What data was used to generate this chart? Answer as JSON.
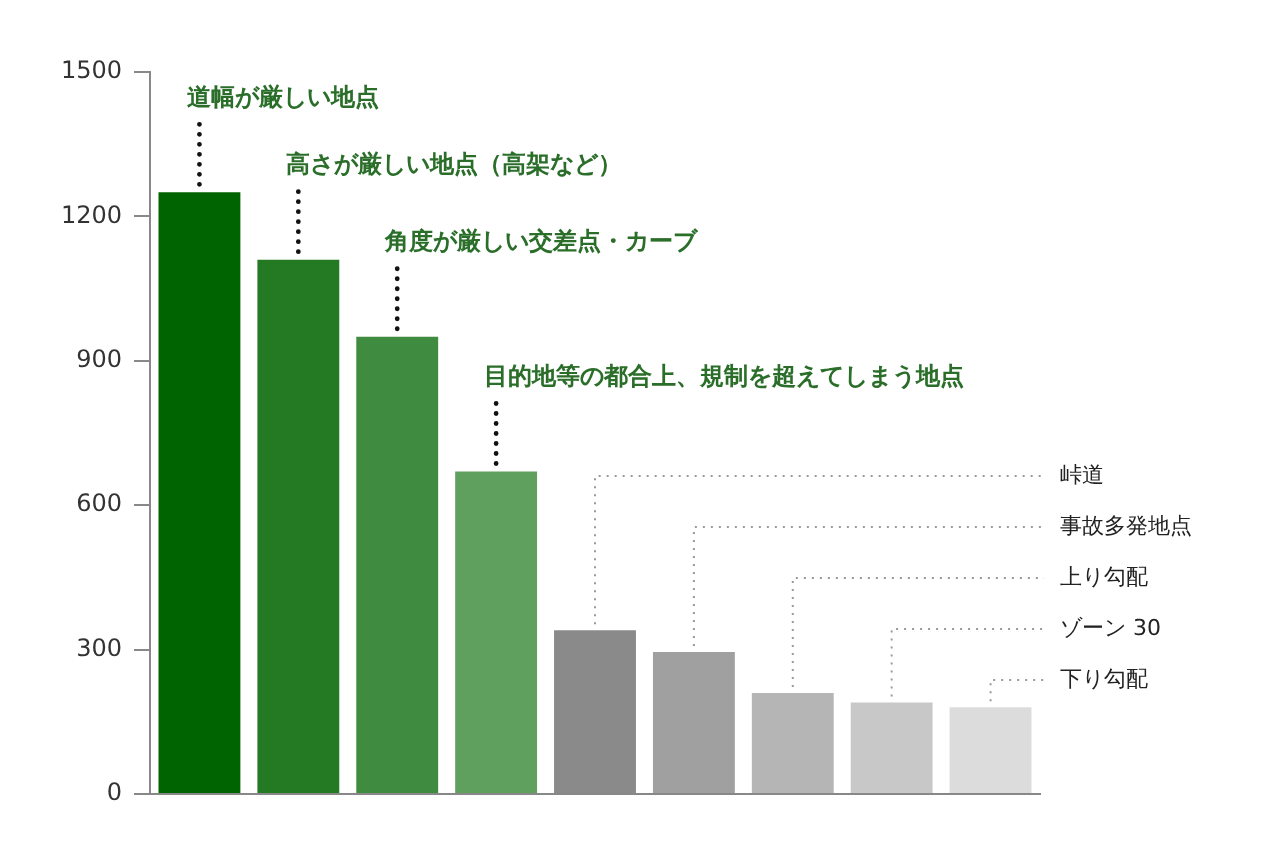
{
  "chart_data": {
    "type": "bar",
    "categories": [
      null,
      null,
      null,
      null,
      null,
      null,
      null,
      null,
      null
    ],
    "annotations": [
      "道幅が厳しい地点",
      "高さが厳しい地点（高架など）",
      "角度が厳しい交差点・カーブ",
      "目的地等の都合上、規制を超えてしまう地点",
      "峠道",
      "事故多発地点",
      "上り勾配",
      "ゾーン 30",
      "下り勾配"
    ],
    "values": [
      1250,
      1110,
      950,
      670,
      340,
      295,
      210,
      190,
      180
    ],
    "colors": [
      "#006400",
      "#237a23",
      "#3f8b3f",
      "#5fa05f",
      "#8a8a8a",
      "#a0a0a0",
      "#b5b5b5",
      "#c8c8c8",
      "#dcdcdc"
    ],
    "ylim": [
      0,
      1500
    ],
    "yticks": [
      0,
      300,
      600,
      900,
      1200,
      1500
    ]
  }
}
